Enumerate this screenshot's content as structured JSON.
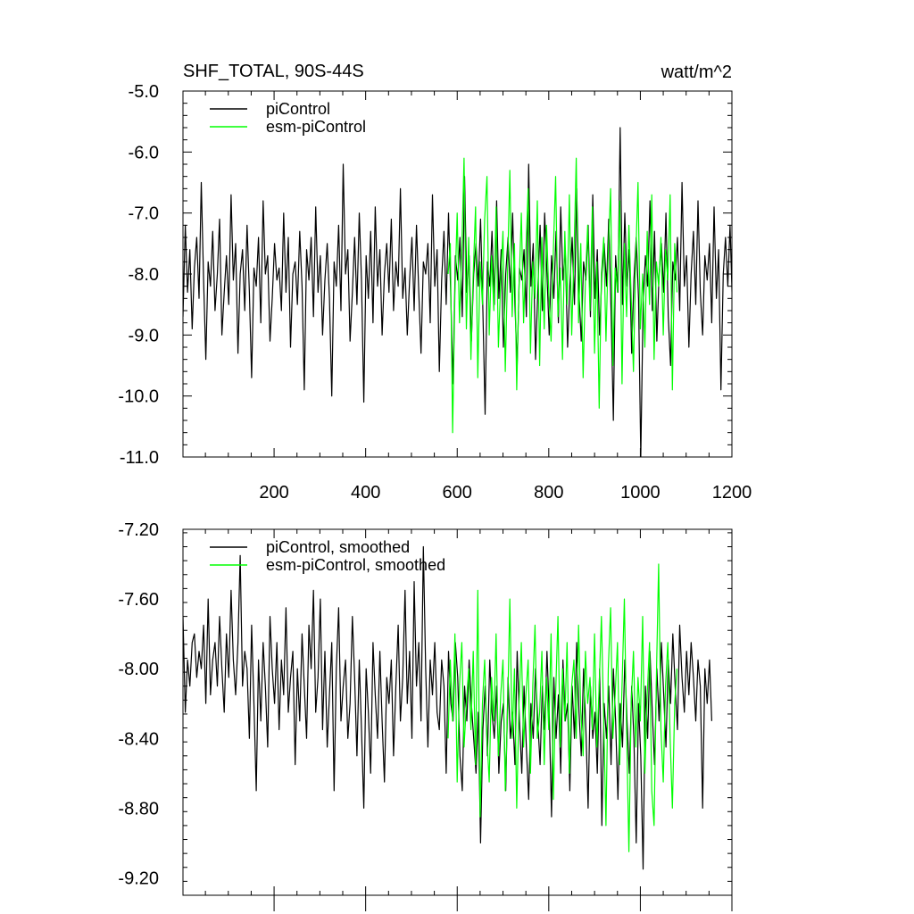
{
  "figure": {
    "title": "SHF_TOTAL, 90S-44S",
    "units": "watt/m^2"
  },
  "chart_data": [
    {
      "type": "line",
      "title": "SHF_TOTAL, 90S-44S",
      "units_label": "watt/m^2",
      "xlim": [
        1,
        1200
      ],
      "ylim": [
        -11.0,
        -5.0
      ],
      "x_ticks": [
        200,
        400,
        600,
        800,
        1000,
        1200
      ],
      "x_tick_labels": [
        "200",
        "400",
        "600",
        "800",
        "1000",
        "1200"
      ],
      "y_ticks": [
        -11.0,
        -10.0,
        -9.0,
        -8.0,
        -7.0,
        -6.0,
        -5.0
      ],
      "y_tick_labels": [
        "-11.0",
        "-10.0",
        "-9.0",
        "-8.0",
        "-7.0",
        "-6.0",
        "-5.0"
      ],
      "grid": false,
      "legend_position": "top-left",
      "legend": [
        "piControl",
        "esm-piControl"
      ],
      "series": [
        {
          "name": "piControl",
          "color": "#000000",
          "x_start": 1,
          "x_step": 5,
          "values": [
            -8.7,
            -7.2,
            -8.3,
            -7.6,
            -8.9,
            -7.9,
            -7.4,
            -8.4,
            -6.5,
            -8.1,
            -9.4,
            -7.8,
            -8.2,
            -7.3,
            -8.6,
            -8.0,
            -7.1,
            -9.0,
            -8.3,
            -7.7,
            -8.5,
            -6.7,
            -8.1,
            -7.5,
            -9.3,
            -8.0,
            -7.6,
            -8.6,
            -7.2,
            -8.3,
            -9.7,
            -7.9,
            -8.2,
            -7.4,
            -8.8,
            -6.8,
            -8.0,
            -7.7,
            -9.1,
            -8.4,
            -7.5,
            -8.1,
            -7.9,
            -8.6,
            -7.0,
            -8.3,
            -7.4,
            -9.2,
            -8.0,
            -7.8,
            -8.5,
            -7.3,
            -8.2,
            -9.9,
            -7.6,
            -8.1,
            -7.4,
            -8.7,
            -6.9,
            -8.3,
            -7.7,
            -9.0,
            -8.1,
            -7.5,
            -8.4,
            -10.0,
            -7.8,
            -8.2,
            -7.2,
            -8.6,
            -6.2,
            -8.0,
            -7.6,
            -9.1,
            -8.3,
            -7.4,
            -8.5,
            -7.0,
            -8.1,
            -10.1,
            -7.7,
            -8.4,
            -7.3,
            -8.8,
            -6.9,
            -8.2,
            -7.6,
            -9.0,
            -8.0,
            -7.5,
            -8.3,
            -7.1,
            -8.6,
            -7.8,
            -8.2,
            -6.6,
            -8.4,
            -7.9,
            -9.0,
            -8.1,
            -7.4,
            -8.6,
            -7.2,
            -8.3,
            -9.3,
            -7.8,
            -8.0,
            -7.5,
            -8.8,
            -6.7,
            -8.2,
            -7.6,
            -9.6,
            -8.1,
            -7.3,
            -8.5,
            -7.0,
            -8.4,
            -9.8,
            -7.7,
            -8.1,
            -7.4,
            -8.7,
            -6.4,
            -8.3,
            -7.7,
            -9.1,
            -8.0,
            -7.5,
            -8.2,
            -7.1,
            -8.6,
            -10.3,
            -7.8,
            -8.2,
            -7.3,
            -8.5,
            -6.8,
            -8.4,
            -7.6,
            -9.2,
            -8.0,
            -7.4,
            -8.3,
            -7.0,
            -8.5,
            -9.5,
            -7.9,
            -8.1,
            -7.6,
            -8.7,
            -6.2,
            -8.2,
            -7.5,
            -9.4,
            -8.3,
            -7.2,
            -8.6,
            -7.0,
            -8.0,
            -9.0,
            -7.7,
            -8.4,
            -7.3,
            -8.8,
            -6.9,
            -8.1,
            -7.6,
            -9.2,
            -8.2,
            -7.4,
            -8.5,
            -6.6,
            -8.3,
            -9.1,
            -7.8,
            -8.1,
            -7.2,
            -8.7,
            -6.7,
            -8.4,
            -7.6,
            -9.0,
            -8.0,
            -7.5,
            -8.2,
            -7.1,
            -8.6,
            -10.4,
            -7.7,
            -8.3,
            -5.6,
            -8.5,
            -7.0,
            -8.2,
            -7.6,
            -9.3,
            -8.1,
            -7.4,
            -8.4,
            -11.0,
            -8.5,
            -7.7,
            -8.2,
            -6.8,
            -8.6,
            -7.3,
            -9.1,
            -8.0,
            -7.5,
            -8.3,
            -7.0,
            -8.7,
            -9.5,
            -7.8,
            -8.1,
            -7.4,
            -8.6,
            -6.5,
            -8.2,
            -7.7,
            -9.2,
            -8.0,
            -7.3,
            -8.5,
            -6.8,
            -8.3,
            -9.0,
            -7.7,
            -8.1,
            -7.5,
            -8.8,
            -6.9,
            -8.4,
            -7.6,
            -9.9,
            -8.0,
            -7.4,
            -8.2,
            -7.2,
            -8.5,
            -7.9,
            -8.1,
            -7.0
          ]
        },
        {
          "name": "esm-piControl",
          "color": "#00ff00",
          "x_start": 580,
          "x_step": 5,
          "values": [
            -8.0,
            -7.5,
            -10.6,
            -8.3,
            -7.0,
            -8.8,
            -7.6,
            -6.1,
            -8.9,
            -7.4,
            -9.4,
            -8.0,
            -6.9,
            -9.7,
            -7.8,
            -8.5,
            -7.1,
            -6.4,
            -9.0,
            -7.7,
            -8.6,
            -6.9,
            -9.2,
            -8.1,
            -7.3,
            -9.6,
            -7.9,
            -6.3,
            -8.7,
            -7.5,
            -9.9,
            -8.2,
            -7.0,
            -8.8,
            -7.6,
            -6.6,
            -9.3,
            -7.8,
            -8.4,
            -6.8,
            -9.5,
            -7.4,
            -8.9,
            -7.2,
            -8.3,
            -9.1,
            -7.6,
            -6.4,
            -8.7,
            -7.9,
            -9.4,
            -7.3,
            -8.5,
            -6.7,
            -9.0,
            -7.7,
            -6.1,
            -8.8,
            -7.5,
            -9.7,
            -8.1,
            -7.2,
            -8.6,
            -6.9,
            -9.3,
            -7.8,
            -10.2,
            -8.0,
            -7.4,
            -9.1,
            -7.6,
            -6.6,
            -9.5,
            -7.9,
            -8.3,
            -6.8,
            -9.8,
            -7.5,
            -8.7,
            -7.2,
            -8.4,
            -9.6,
            -7.7,
            -6.5,
            -8.9,
            -8.0,
            -9.2,
            -7.3,
            -8.5,
            -6.7,
            -9.4,
            -7.8,
            -8.2,
            -7.4,
            -9.0,
            -7.6,
            -8.1,
            -6.7,
            -9.9,
            -7.5,
            -8.3
          ]
        }
      ]
    },
    {
      "type": "line",
      "xlim": [
        1,
        1200
      ],
      "ylim": [
        -9.3,
        -7.2
      ],
      "x_ticks": [
        200,
        400,
        600,
        800,
        1000,
        1200
      ],
      "x_tick_labels": [],
      "y_ticks": [
        -9.2,
        -8.8,
        -8.4,
        -8.0,
        -7.6,
        -7.2
      ],
      "y_tick_labels": [
        "-9.20",
        "-8.80",
        "-8.40",
        "-8.00",
        "-7.60",
        "-7.20"
      ],
      "grid": false,
      "legend_position": "top-left",
      "legend": [
        "piControl, smoothed",
        "esm-piControl, smoothed"
      ],
      "series": [
        {
          "name": "piControl, smoothed",
          "color": "#000000",
          "x_start": 1,
          "x_step": 5,
          "values": [
            -7.7,
            -8.25,
            -7.95,
            -8.1,
            -7.85,
            -7.8,
            -8.05,
            -7.9,
            -8.0,
            -7.75,
            -8.2,
            -7.6,
            -8.15,
            -7.95,
            -7.85,
            -8.1,
            -7.7,
            -8.0,
            -8.25,
            -7.8,
            -8.05,
            -7.55,
            -7.95,
            -8.15,
            -7.85,
            -7.35,
            -8.1,
            -7.9,
            -8.0,
            -8.4,
            -7.75,
            -8.2,
            -8.7,
            -7.95,
            -8.3,
            -7.85,
            -8.1,
            -8.45,
            -7.7,
            -8.0,
            -8.2,
            -7.85,
            -8.35,
            -7.95,
            -8.15,
            -7.65,
            -8.25,
            -8.05,
            -7.9,
            -8.55,
            -8.0,
            -8.3,
            -7.8,
            -8.1,
            -8.4,
            -7.75,
            -8.0,
            -7.55,
            -8.25,
            -8.05,
            -7.6,
            -8.35,
            -7.9,
            -8.45,
            -8.15,
            -7.85,
            -8.7,
            -8.0,
            -7.65,
            -8.3,
            -8.1,
            -7.95,
            -8.4,
            -8.2,
            -7.7,
            -8.05,
            -8.5,
            -7.95,
            -8.35,
            -8.8,
            -8.0,
            -8.25,
            -8.6,
            -7.85,
            -8.15,
            -8.4,
            -7.9,
            -8.3,
            -8.65,
            -8.05,
            -8.2,
            -7.95,
            -8.5,
            -8.1,
            -7.75,
            -8.3,
            -8.05,
            -7.55,
            -8.2,
            -7.9,
            -8.4,
            -7.5,
            -8.1,
            -7.85,
            -8.3,
            -7.3,
            -8.0,
            -8.45,
            -7.95,
            -8.15,
            -7.85,
            -8.25,
            -8.35,
            -7.95,
            -8.1,
            -8.6,
            -7.9,
            -8.2,
            -8.3,
            -7.85,
            -8.05,
            -8.5,
            -8.7,
            -8.1,
            -8.3,
            -7.95,
            -8.2,
            -8.4,
            -8.6,
            -8.25,
            -9.0,
            -8.35,
            -8.1,
            -8.5,
            -7.95,
            -8.25,
            -8.4,
            -8.1,
            -8.6,
            -8.3,
            -8.2,
            -8.7,
            -8.05,
            -8.4,
            -8.25,
            -8.55,
            -7.9,
            -8.3,
            -8.6,
            -8.1,
            -8.45,
            -8.75,
            -8.2,
            -8.4,
            -8.0,
            -8.3,
            -8.55,
            -8.1,
            -8.35,
            -7.9,
            -8.25,
            -8.85,
            -8.05,
            -8.4,
            -8.15,
            -8.6,
            -7.95,
            -8.3,
            -8.2,
            -8.7,
            -8.1,
            -8.4,
            -7.85,
            -8.25,
            -8.5,
            -8.0,
            -8.35,
            -8.8,
            -8.1,
            -8.4,
            -8.25,
            -8.6,
            -8.0,
            -8.9,
            -8.2,
            -8.4,
            -8.1,
            -8.55,
            -8.0,
            -8.3,
            -8.75,
            -8.2,
            -8.45,
            -7.95,
            -8.3,
            -8.6,
            -8.1,
            -8.4,
            -9.0,
            -8.2,
            -8.5,
            -9.15,
            -8.1,
            -8.4,
            -7.9,
            -8.25,
            -8.55,
            -8.0,
            -8.3,
            -7.85,
            -8.15,
            -8.45,
            -7.95,
            -8.2,
            -7.8,
            -8.1,
            -8.35,
            -7.75,
            -8.05,
            -8.25,
            -7.9,
            -8.15,
            -7.85,
            -8.05,
            -8.3,
            -7.95,
            -8.1,
            -8.8,
            -8.0,
            -8.2,
            -7.95,
            -8.3
          ]
        },
        {
          "name": "esm-piControl, smoothed",
          "color": "#00ff00",
          "x_start": 580,
          "x_step": 5,
          "values": [
            -8.4,
            -7.95,
            -8.3,
            -7.8,
            -8.65,
            -8.1,
            -7.85,
            -8.45,
            -8.2,
            -8.0,
            -8.35,
            -7.9,
            -8.55,
            -7.55,
            -8.85,
            -8.2,
            -7.95,
            -8.4,
            -8.65,
            -8.05,
            -8.3,
            -7.8,
            -8.5,
            -8.15,
            -7.95,
            -8.7,
            -8.25,
            -7.6,
            -8.4,
            -8.0,
            -8.8,
            -8.2,
            -7.85,
            -8.45,
            -8.15,
            -7.95,
            -8.6,
            -8.1,
            -7.75,
            -8.4,
            -8.25,
            -7.9,
            -8.55,
            -8.05,
            -8.35,
            -7.8,
            -8.75,
            -8.15,
            -7.7,
            -8.45,
            -8.0,
            -8.3,
            -7.85,
            -8.6,
            -8.1,
            -7.95,
            -8.4,
            -7.75,
            -8.25,
            -8.5,
            -7.9,
            -8.2,
            -8.05,
            -8.35,
            -7.8,
            -8.45,
            -8.1,
            -7.7,
            -8.3,
            -8.9,
            -8.0,
            -7.65,
            -8.4,
            -8.15,
            -7.85,
            -8.55,
            -8.1,
            -7.6,
            -8.35,
            -9.05,
            -8.2,
            -7.9,
            -8.45,
            -8.05,
            -8.3,
            -7.7,
            -8.6,
            -8.15,
            -7.85,
            -8.7,
            -8.9,
            -8.05,
            -7.4,
            -8.35,
            -8.65,
            -8.1,
            -7.85,
            -8.4,
            -8.8,
            -8.2,
            -8.0
          ]
        }
      ]
    }
  ]
}
